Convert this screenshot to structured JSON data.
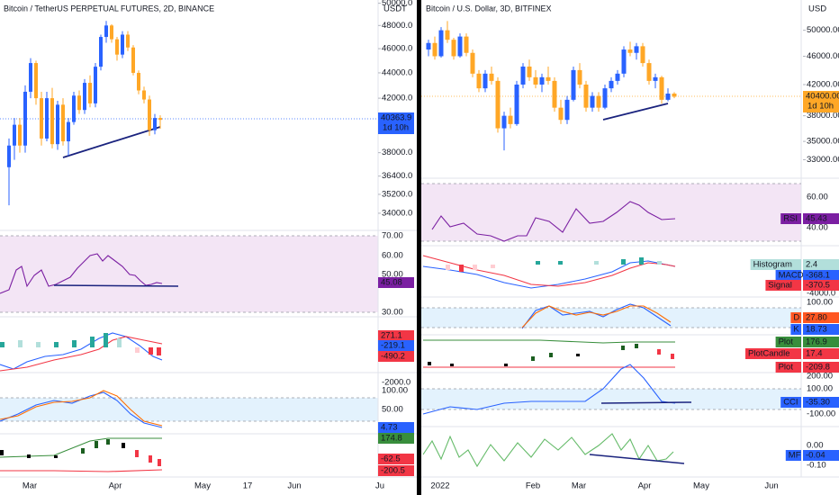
{
  "left": {
    "title": "Bitcoin / TetherUS PERPETUAL FUTURES, 2D, BINANCE",
    "currency": "USDT",
    "log_scale": true,
    "ylim": [
      33000,
      50300
    ],
    "yticks": [
      {
        "value": 50000,
        "label": "50000.0"
      },
      {
        "value": 48000,
        "label": "48000.0"
      },
      {
        "value": 46000,
        "label": "46000.0"
      },
      {
        "value": 44000,
        "label": "44000.0"
      },
      {
        "value": 42000,
        "label": "42000.0"
      },
      {
        "value": 38000,
        "label": "38000.0"
      },
      {
        "value": 36400,
        "label": "36400.0"
      },
      {
        "value": 35200,
        "label": "35200.0"
      },
      {
        "value": 34000,
        "label": "34000.0"
      }
    ],
    "candles": [
      [
        37000,
        39000,
        34500,
        38500
      ],
      [
        38500,
        40500,
        37500,
        40000
      ],
      [
        40000,
        40500,
        38000,
        38500
      ],
      [
        38500,
        43000,
        38000,
        42500
      ],
      [
        42500,
        45200,
        42000,
        44800
      ],
      [
        44800,
        45000,
        41500,
        42000
      ],
      [
        42000,
        42500,
        38500,
        39000
      ],
      [
        39000,
        42500,
        38800,
        42000
      ],
      [
        42000,
        42800,
        38300,
        38600
      ],
      [
        38600,
        41800,
        38200,
        41500
      ],
      [
        41500,
        42000,
        38500,
        38800
      ],
      [
        38800,
        40500,
        37800,
        40200
      ],
      [
        40200,
        42500,
        40000,
        42200
      ],
      [
        42200,
        42600,
        40800,
        41100
      ],
      [
        41100,
        43500,
        40800,
        43200
      ],
      [
        43200,
        43800,
        41300,
        41600
      ],
      [
        41600,
        44800,
        41300,
        44500
      ],
      [
        44500,
        47200,
        44200,
        47000
      ],
      [
        47000,
        48400,
        46500,
        48000
      ],
      [
        48000,
        48100,
        46500,
        46800
      ],
      [
        46800,
        47000,
        45000,
        45500
      ],
      [
        45500,
        47500,
        45200,
        47200
      ],
      [
        47200,
        47500,
        45800,
        46100
      ],
      [
        46100,
        46300,
        43800,
        44000
      ],
      [
        44000,
        44200,
        42300,
        42600
      ],
      [
        42600,
        42900,
        41600,
        41900
      ],
      [
        41900,
        42200,
        39200,
        39600
      ],
      [
        39600,
        40800,
        39300,
        40500
      ],
      [
        40500,
        40700,
        39700,
        40363.9
      ]
    ],
    "last_price": "40363.9",
    "countdown": "1d 10h",
    "indicator_labels": [
      "70.00",
      "60.00",
      "50.00",
      "30.00",
      "-2000.0",
      "100.00",
      "50.00"
    ],
    "badges": [
      "45.08",
      "271.1",
      "-219.1",
      "-490.2",
      "4.73",
      "174.8",
      "-62.5",
      "-200.5"
    ],
    "time_labels": [
      "Mar",
      "Apr",
      "May",
      "17",
      "Jun",
      "Ju"
    ]
  },
  "right": {
    "title": "Bitcoin / U.S. Dollar, 3D, BITFINEX",
    "currency": "USD",
    "log_scale": true,
    "ylim": [
      31100,
      55100
    ],
    "yticks": [
      {
        "value": 50000,
        "label": "50000.00"
      },
      {
        "value": 46000,
        "label": "46000.00"
      },
      {
        "value": 42000,
        "label": "42000.00"
      },
      {
        "value": 38000,
        "label": "38000.00"
      },
      {
        "value": 35000,
        "label": "35000.00"
      },
      {
        "value": 33000,
        "label": "33000.00"
      }
    ],
    "candles": [
      [
        47000,
        48500,
        46000,
        48000
      ],
      [
        48000,
        49000,
        45500,
        46000
      ],
      [
        46000,
        50500,
        45800,
        50000
      ],
      [
        50000,
        51500,
        48000,
        48500
      ],
      [
        48500,
        48800,
        45500,
        46000
      ],
      [
        46000,
        49500,
        45800,
        49000
      ],
      [
        49000,
        49500,
        46000,
        46500
      ],
      [
        46500,
        47000,
        43000,
        43500
      ],
      [
        43500,
        44000,
        41000,
        41500
      ],
      [
        41500,
        44000,
        41000,
        43500
      ],
      [
        43500,
        44500,
        42000,
        42500
      ],
      [
        42500,
        43000,
        36000,
        36500
      ],
      [
        36500,
        38500,
        34000,
        38000
      ],
      [
        38000,
        39000,
        36500,
        37000
      ],
      [
        37000,
        42500,
        36800,
        42000
      ],
      [
        42000,
        45000,
        41500,
        44500
      ],
      [
        44500,
        45500,
        42500,
        43000
      ],
      [
        43000,
        44000,
        41500,
        42000
      ],
      [
        42000,
        43500,
        41000,
        43000
      ],
      [
        43000,
        44500,
        42000,
        42500
      ],
      [
        42500,
        43000,
        38500,
        39000
      ],
      [
        39000,
        40000,
        37000,
        37500
      ],
      [
        37500,
        40500,
        37000,
        40000
      ],
      [
        40000,
        44500,
        39800,
        44000
      ],
      [
        44000,
        45000,
        41500,
        42000
      ],
      [
        42000,
        42500,
        38500,
        39000
      ],
      [
        39000,
        41000,
        38500,
        40500
      ],
      [
        40500,
        41000,
        38500,
        39000
      ],
      [
        39000,
        42000,
        38800,
        41500
      ],
      [
        41500,
        43000,
        41000,
        42500
      ],
      [
        42500,
        44000,
        42000,
        43500
      ],
      [
        43500,
        47500,
        43000,
        47000
      ],
      [
        47000,
        48200,
        46000,
        46500
      ],
      [
        46500,
        48000,
        45500,
        47500
      ],
      [
        47500,
        48000,
        44500,
        45000
      ],
      [
        45000,
        45500,
        42000,
        42500
      ],
      [
        42500,
        43500,
        41500,
        43000
      ],
      [
        43000,
        43200,
        39500,
        40000
      ],
      [
        40000,
        41500,
        39800,
        40800
      ],
      [
        40800,
        41000,
        40200,
        40400
      ]
    ],
    "last_price": "40400.00",
    "countdown": "1d 10h",
    "indicator_labels": [
      "60.00",
      "40.00",
      "-4000.0",
      "100.00",
      "200.00",
      "100.00",
      "-100.00",
      "0.00",
      "-0.10"
    ],
    "badges": [
      {
        "name": "RSI",
        "value": "45.43"
      },
      {
        "name": "Histogram",
        "value": "2.4"
      },
      {
        "name": "MACD",
        "value": "-368.1"
      },
      {
        "name": "Signal",
        "value": "-370.5"
      },
      {
        "name": "D",
        "value": "27.80"
      },
      {
        "name": "K",
        "value": "18.73"
      },
      {
        "name": "Plot",
        "value": "176.9"
      },
      {
        "name": "PlotCandle",
        "value": "17.4"
      },
      {
        "name": "Plot",
        "value": "-209.8"
      },
      {
        "name": "CCI",
        "value": "-35.30"
      },
      {
        "name": "MF",
        "value": "-0.04"
      }
    ],
    "time_labels": [
      "2022",
      "Feb",
      "Mar",
      "Apr",
      "May",
      "Jun"
    ]
  }
}
